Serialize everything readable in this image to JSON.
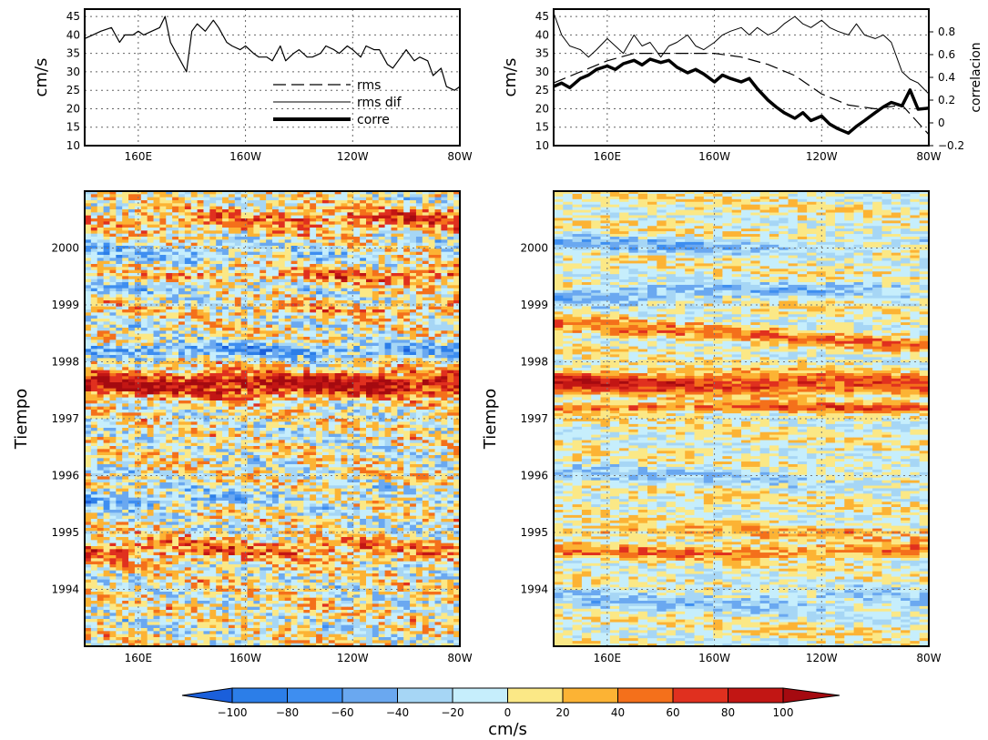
{
  "chart_data": [
    {
      "id": "top-left",
      "type": "line",
      "xlim": [
        "140E",
        "80W"
      ],
      "ylim": [
        10,
        47
      ],
      "ylabel": "cm/s",
      "x_tick_labels": [
        "160E",
        "160W",
        "120W",
        "80W"
      ],
      "y_tick_labels": [
        "10",
        "15",
        "20",
        "25",
        "30",
        "35",
        "40",
        "45"
      ],
      "grid": true,
      "legend": {
        "placement": "bottom-right",
        "entries": [
          {
            "label": "rms",
            "style": "dashed"
          },
          {
            "label": "rms dif",
            "style": "thin"
          },
          {
            "label": "corre",
            "style": "thick"
          }
        ]
      },
      "series": [
        {
          "label": "rms",
          "x": [
            140,
            143,
            146,
            150,
            153,
            155,
            158,
            160,
            162,
            165,
            168,
            170,
            172,
            175,
            178,
            180,
            182,
            185,
            188,
            190,
            193,
            195,
            198,
            200,
            203,
            205,
            208,
            210,
            213,
            215,
            218,
            220,
            223,
            225,
            228,
            230,
            233,
            235,
            238,
            240,
            243,
            245,
            248,
            250,
            253,
            255,
            258,
            260,
            263,
            265,
            268,
            270,
            273,
            275,
            278,
            280
          ],
          "values": [
            39,
            40,
            41,
            42,
            38,
            40,
            40,
            41,
            40,
            41,
            42,
            45,
            38,
            34,
            30,
            41,
            43,
            41,
            44,
            42,
            38,
            37,
            36,
            37,
            35,
            34,
            34,
            33,
            37,
            33,
            35,
            36,
            34,
            34,
            35,
            37,
            36,
            35,
            37,
            36,
            34,
            37,
            36,
            36,
            32,
            31,
            34,
            36,
            33,
            34,
            33,
            29,
            31,
            26,
            25,
            26
          ]
        }
      ]
    },
    {
      "id": "top-right",
      "type": "line",
      "xlim": [
        "140E",
        "80W"
      ],
      "ylim": [
        10,
        47
      ],
      "ylim_right": [
        -0.2,
        1.0
      ],
      "ylabel": "cm/s",
      "ylabel_right": "correlacion",
      "x_tick_labels": [
        "160E",
        "160W",
        "120W",
        "80W"
      ],
      "y_tick_labels": [
        "10",
        "15",
        "20",
        "25",
        "30",
        "35",
        "40",
        "45"
      ],
      "y_tick_labels_right": [
        "−0.2",
        "0",
        "0.2",
        "0.4",
        "0.6",
        "0.8"
      ],
      "grid": true,
      "series": [
        {
          "label": "rms",
          "x": [
            140,
            150,
            160,
            170,
            180,
            190,
            200,
            210,
            220,
            230,
            240,
            250,
            260,
            270,
            280
          ],
          "values": [
            27,
            30,
            33,
            35,
            35,
            35,
            35,
            34,
            32,
            29,
            24,
            21,
            20,
            21,
            13
          ]
        },
        {
          "label": "rms dif",
          "x": [
            140,
            143,
            146,
            150,
            153,
            156,
            160,
            163,
            166,
            170,
            173,
            176,
            180,
            183,
            186,
            190,
            193,
            196,
            200,
            203,
            206,
            210,
            213,
            216,
            220,
            223,
            226,
            230,
            233,
            236,
            240,
            243,
            246,
            250,
            253,
            256,
            260,
            263,
            266,
            270,
            273,
            276,
            280
          ],
          "values": [
            46,
            40,
            37,
            36,
            34,
            36,
            39,
            37,
            35,
            40,
            37,
            38,
            34,
            37,
            38,
            40,
            37,
            36,
            38,
            40,
            41,
            42,
            40,
            42,
            40,
            41,
            43,
            45,
            43,
            42,
            44,
            42,
            41,
            40,
            43,
            40,
            39,
            40,
            38,
            30,
            28,
            27,
            24
          ]
        },
        {
          "label": "corre",
          "x": [
            140,
            143,
            146,
            150,
            153,
            156,
            160,
            163,
            166,
            170,
            173,
            176,
            180,
            183,
            186,
            190,
            193,
            196,
            200,
            203,
            206,
            210,
            213,
            216,
            220,
            223,
            226,
            230,
            233,
            236,
            240,
            243,
            246,
            250,
            253,
            256,
            260,
            263,
            266,
            270,
            273,
            276,
            280
          ],
          "values": [
            0.32,
            0.35,
            0.31,
            0.39,
            0.42,
            0.47,
            0.5,
            0.47,
            0.52,
            0.55,
            0.51,
            0.56,
            0.53,
            0.55,
            0.49,
            0.44,
            0.47,
            0.43,
            0.36,
            0.42,
            0.39,
            0.36,
            0.39,
            0.3,
            0.2,
            0.14,
            0.09,
            0.04,
            0.09,
            0.02,
            0.06,
            -0.01,
            -0.05,
            -0.09,
            -0.03,
            0.02,
            0.09,
            0.14,
            0.18,
            0.15,
            0.29,
            0.12,
            0.13
          ]
        }
      ]
    },
    {
      "id": "bottom-left",
      "type": "heatmap",
      "xlim": [
        "140E",
        "80W"
      ],
      "ylim": [
        1993,
        2001
      ],
      "ylabel": "Tiempo",
      "x_tick_labels": [
        "160E",
        "160W",
        "120W",
        "80W"
      ],
      "y_tick_labels": [
        "1994",
        "1995",
        "1996",
        "1997",
        "1998",
        "1999",
        "2000"
      ],
      "grid": true
    },
    {
      "id": "bottom-right",
      "type": "heatmap",
      "xlim": [
        "140E",
        "80W"
      ],
      "ylim": [
        1993,
        2001
      ],
      "ylabel": "Tiempo",
      "x_tick_labels": [
        "160E",
        "160W",
        "120W",
        "80W"
      ],
      "y_tick_labels": [
        "1994",
        "1995",
        "1996",
        "1997",
        "1998",
        "1999",
        "2000"
      ],
      "grid": true
    }
  ],
  "colorbar": {
    "unit": "cm/s",
    "tick_labels": [
      "−100",
      "−80",
      "−60",
      "−40",
      "−20",
      "0",
      "20",
      "40",
      "60",
      "80",
      "100"
    ],
    "colors": [
      "#1a5fdb",
      "#2c7ee8",
      "#3e8ef0",
      "#6aa8f0",
      "#a6d6f5",
      "#c6eefc",
      "#fbe886",
      "#fcb334",
      "#f4701b",
      "#e0301f",
      "#c21614",
      "#a50a10"
    ]
  }
}
